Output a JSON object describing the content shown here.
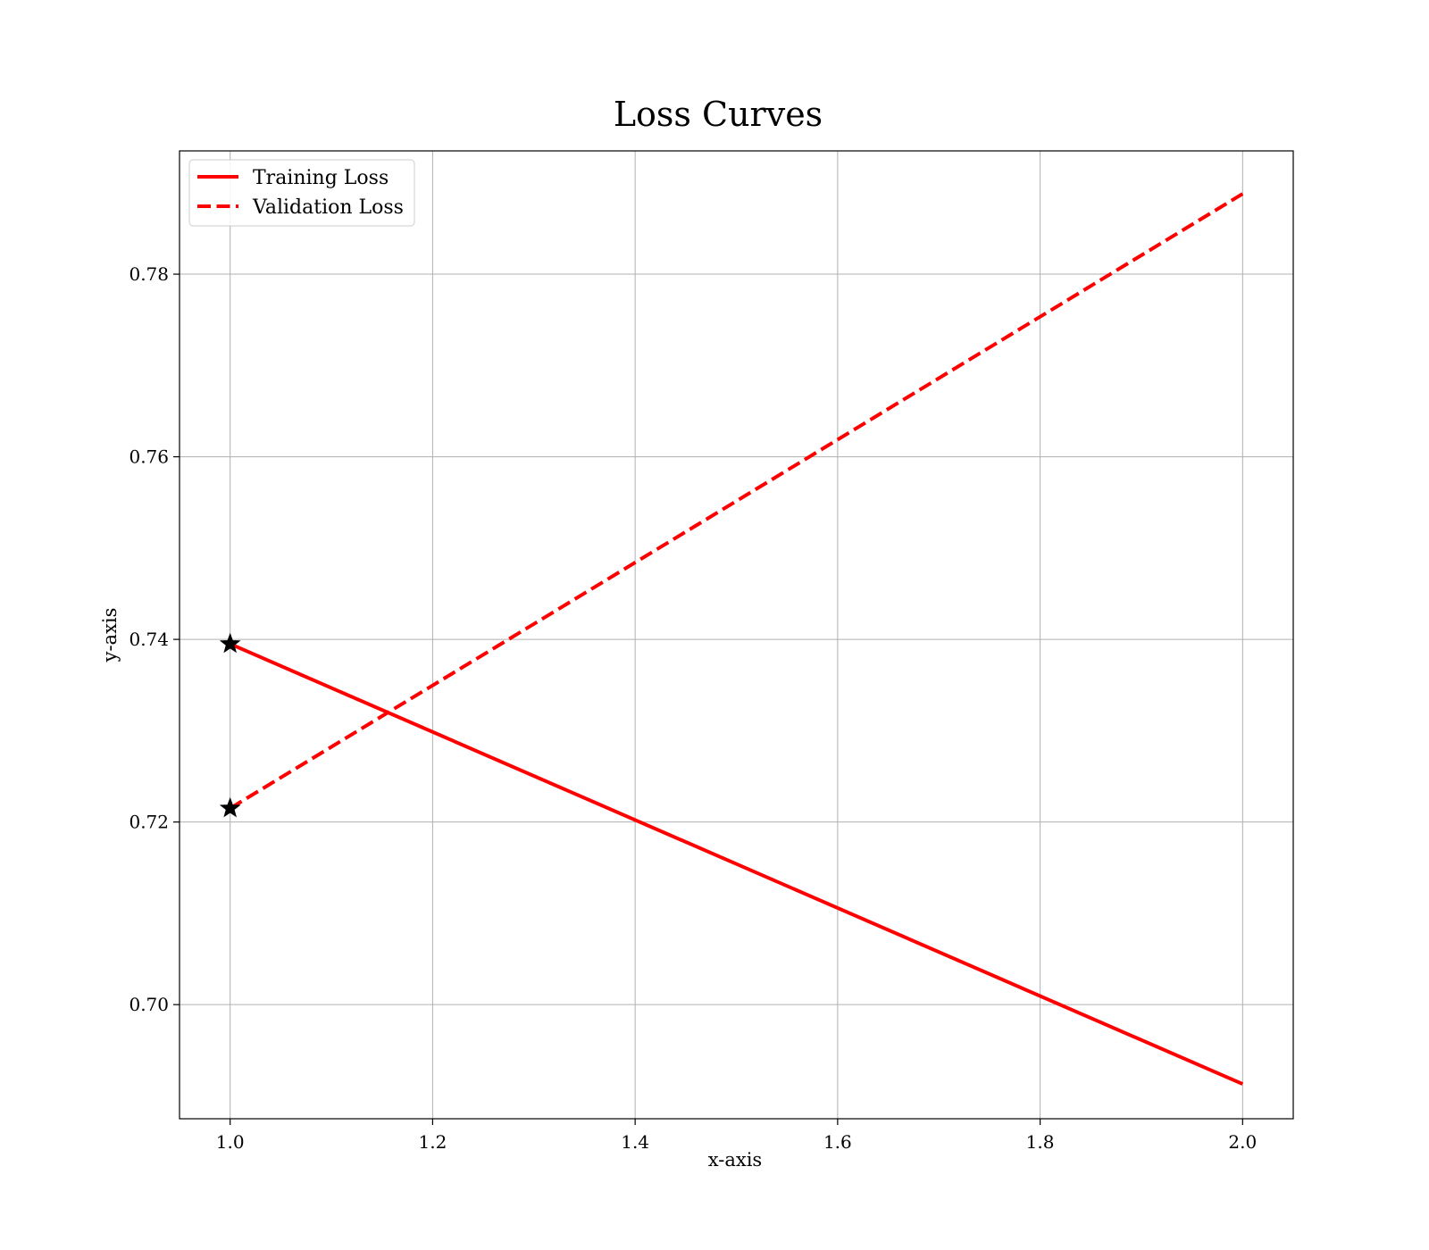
{
  "chart_data": {
    "type": "line",
    "title": "Loss Curves",
    "xlabel": "x-axis",
    "ylabel": "y-axis",
    "xlim": [
      0.95,
      2.05
    ],
    "ylim": [
      0.6875,
      0.7935
    ],
    "x_ticks": [
      1.0,
      1.2,
      1.4,
      1.6,
      1.8,
      2.0
    ],
    "x_tick_labels": [
      "1.0",
      "1.2",
      "1.4",
      "1.6",
      "1.8",
      "2.0"
    ],
    "y_ticks": [
      0.7,
      0.72,
      0.74,
      0.76,
      0.78
    ],
    "y_tick_labels": [
      "0.70",
      "0.72",
      "0.74",
      "0.76",
      "0.78"
    ],
    "grid": true,
    "legend_position": "top-left",
    "series": [
      {
        "name": "Training Loss",
        "x": [
          1.0,
          2.0
        ],
        "y": [
          0.7395,
          0.6913
        ],
        "color": "#ff0000",
        "linestyle": "solid",
        "start_marker": "star"
      },
      {
        "name": "Validation Loss",
        "x": [
          1.0,
          2.0
        ],
        "y": [
          0.7215,
          0.7888
        ],
        "color": "#ff0000",
        "linestyle": "dashed",
        "start_marker": "star"
      }
    ]
  }
}
